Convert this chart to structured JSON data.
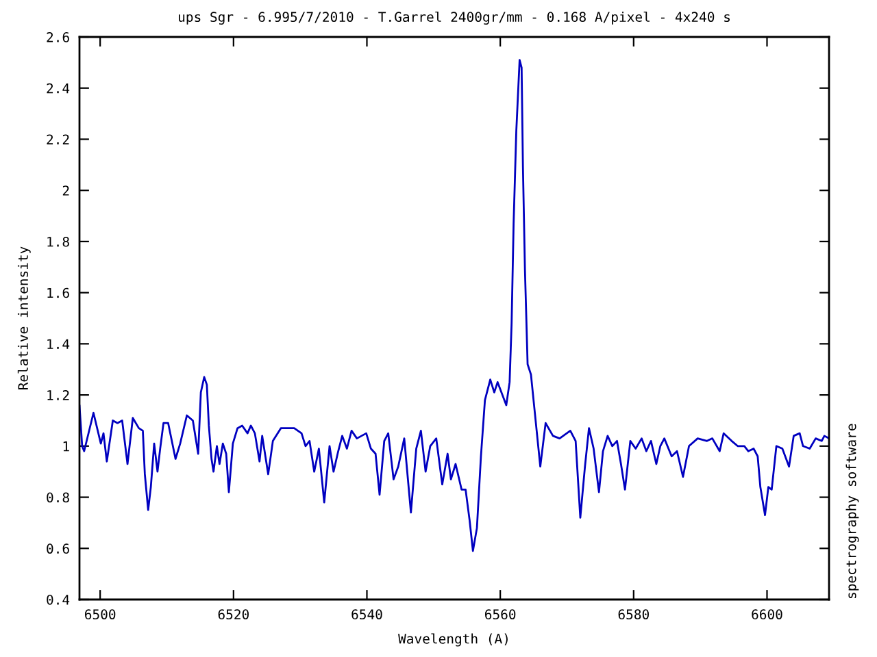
{
  "chart_data": {
    "type": "line",
    "title": "ups Sgr - 6.995/7/2010 - T.Garrel 2400gr/mm - 0.168 A/pixel - 4x240 s",
    "xlabel": "Wavelength (A)",
    "ylabel": "Relative intensity",
    "annotations": [
      "spectrography software"
    ],
    "x": [
      6496.9,
      6497.3,
      6497.6,
      6499.0,
      6500.1,
      6500.5,
      6501.0,
      6501.9,
      6502.6,
      6503.3,
      6504.1,
      6504.9,
      6505.8,
      6506.4,
      6506.7,
      6507.2,
      6507.6,
      6508.1,
      6508.6,
      6509.0,
      6509.5,
      6510.2,
      6511.3,
      6512.0,
      6513.0,
      6513.9,
      6514.7,
      6515.1,
      6515.6,
      6516.0,
      6516.3,
      6516.7,
      6517.0,
      6517.5,
      6517.9,
      6518.4,
      6518.9,
      6519.3,
      6519.9,
      6520.6,
      6521.3,
      6522.1,
      6522.6,
      6523.2,
      6523.9,
      6524.3,
      6525.2,
      6525.9,
      6527.1,
      6528.1,
      6529.1,
      6530.2,
      6530.8,
      6531.4,
      6532.1,
      6532.8,
      6533.6,
      6534.4,
      6535.0,
      6535.7,
      6536.3,
      6537.0,
      6537.7,
      6538.5,
      6539.2,
      6539.9,
      6540.6,
      6541.3,
      6541.9,
      6542.6,
      6543.2,
      6544.0,
      6544.7,
      6545.6,
      6546.6,
      6547.4,
      6548.1,
      6548.8,
      6549.5,
      6550.4,
      6551.3,
      6552.1,
      6552.6,
      6553.3,
      6554.2,
      6554.8,
      6555.4,
      6555.9,
      6556.5,
      6557.1,
      6557.7,
      6558.5,
      6559.1,
      6559.6,
      6560.9,
      6561.4,
      6561.7,
      6562.0,
      6562.4,
      6562.9,
      6563.2,
      6563.4,
      6563.7,
      6564.1,
      6564.6,
      6565.3,
      6566.0,
      6566.8,
      6567.9,
      6568.9,
      6570.5,
      6571.3,
      6572.0,
      6572.7,
      6573.3,
      6574.0,
      6574.8,
      6575.4,
      6576.1,
      6576.8,
      6577.5,
      6578.1,
      6578.7,
      6579.5,
      6580.3,
      6581.2,
      6581.9,
      6582.6,
      6583.4,
      6584.0,
      6584.6,
      6585.7,
      6586.5,
      6587.4,
      6588.3,
      6589.6,
      6591.0,
      6591.8,
      6592.9,
      6593.5,
      6594.7,
      6595.6,
      6596.6,
      6597.2,
      6598.0,
      6598.6,
      6599.0,
      6599.7,
      6600.2,
      6600.7,
      6601.4,
      6602.3,
      6603.3,
      6604.0,
      6604.9,
      6605.4,
      6606.4,
      6607.3,
      6608.2,
      6608.6,
      6609.3
    ],
    "series": [
      {
        "color": "#0000c0",
        "values": [
          1.16,
          1.0,
          0.98,
          1.13,
          1.01,
          1.05,
          0.94,
          1.1,
          1.09,
          1.1,
          0.93,
          1.11,
          1.07,
          1.06,
          0.89,
          0.75,
          0.84,
          1.01,
          0.9,
          0.99,
          1.09,
          1.09,
          0.95,
          1.01,
          1.12,
          1.1,
          0.97,
          1.21,
          1.27,
          1.24,
          1.08,
          0.95,
          0.9,
          1.0,
          0.93,
          1.01,
          0.97,
          0.82,
          1.01,
          1.07,
          1.08,
          1.05,
          1.08,
          1.05,
          0.94,
          1.04,
          0.89,
          1.02,
          1.07,
          1.07,
          1.07,
          1.05,
          1.0,
          1.02,
          0.9,
          0.99,
          0.78,
          1.0,
          0.9,
          0.98,
          1.04,
          0.99,
          1.06,
          1.03,
          1.04,
          1.05,
          0.99,
          0.97,
          0.81,
          1.02,
          1.05,
          0.87,
          0.92,
          1.03,
          0.74,
          0.99,
          1.06,
          0.9,
          1.0,
          1.03,
          0.85,
          0.97,
          0.87,
          0.93,
          0.83,
          0.83,
          0.71,
          0.59,
          0.68,
          0.96,
          1.18,
          1.26,
          1.21,
          1.25,
          1.16,
          1.25,
          1.48,
          1.87,
          2.23,
          2.51,
          2.48,
          2.09,
          1.69,
          1.32,
          1.28,
          1.1,
          0.92,
          1.09,
          1.04,
          1.03,
          1.06,
          1.02,
          0.72,
          0.92,
          1.07,
          0.99,
          0.82,
          0.98,
          1.04,
          1.0,
          1.02,
          0.93,
          0.83,
          1.02,
          0.99,
          1.03,
          0.98,
          1.02,
          0.93,
          1.0,
          1.03,
          0.96,
          0.98,
          0.88,
          1.0,
          1.03,
          1.02,
          1.03,
          0.98,
          1.05,
          1.02,
          1.0,
          1.0,
          0.98,
          0.99,
          0.96,
          0.84,
          0.73,
          0.84,
          0.83,
          1.0,
          0.99,
          0.92,
          1.04,
          1.05,
          1.0,
          0.99,
          1.03,
          1.02,
          1.04,
          1.03
        ]
      }
    ],
    "xlim": [
      6496.9,
      6609.3
    ],
    "ylim": [
      0.4,
      2.6
    ],
    "xticks": [
      6500,
      6520,
      6540,
      6560,
      6580,
      6600
    ],
    "yticks": [
      0.4,
      0.6,
      0.8,
      1,
      1.2,
      1.4,
      1.6,
      1.8,
      2,
      2.2,
      2.4,
      2.6
    ]
  }
}
